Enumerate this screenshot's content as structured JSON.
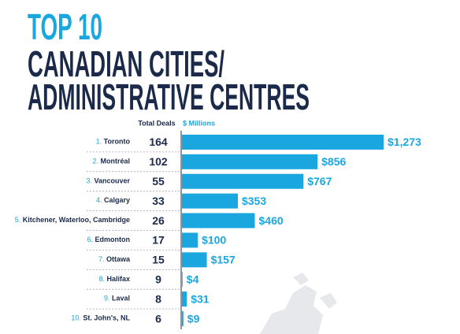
{
  "chart_data": {
    "type": "bar",
    "orientation": "horizontal",
    "title": [
      "TOP 10",
      "CANADIAN CITIES/",
      "ADMINISTRATIVE CENTRES"
    ],
    "deals_header": "Total Deals",
    "values_header": "$ Millions",
    "ranks": [
      "1.",
      "2.",
      "3.",
      "4.",
      "5.",
      "6.",
      "7.",
      "8.",
      "9.",
      "10."
    ],
    "categories": [
      "Toronto",
      "Montréal",
      "Vancouver",
      "Calgary",
      "Kitchener, Waterloo, Cambridge",
      "Edmonton",
      "Ottawa",
      "Halifax",
      "Laval",
      "St. John's, NL"
    ],
    "deals": [
      164,
      102,
      55,
      33,
      26,
      17,
      15,
      9,
      8,
      6
    ],
    "values": [
      1273,
      856,
      767,
      353,
      460,
      100,
      157,
      4,
      31,
      9
    ],
    "value_labels": [
      "$1,273",
      "$856",
      "$767",
      "$353",
      "$460",
      "$100",
      "$157",
      "$4",
      "$31",
      "$9"
    ],
    "color": "#1aa7e0"
  }
}
